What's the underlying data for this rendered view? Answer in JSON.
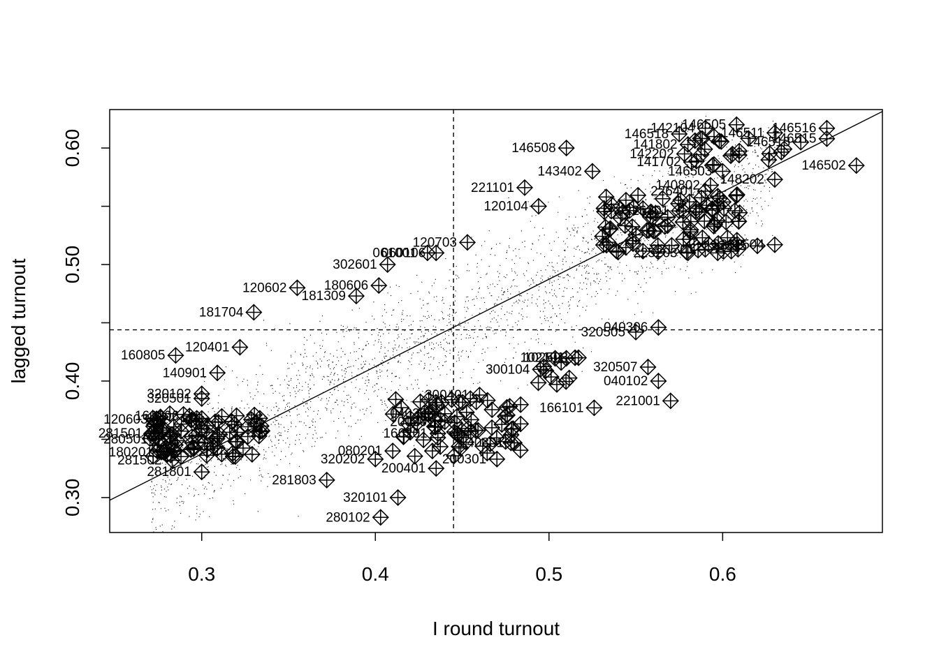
{
  "chart_data": {
    "type": "scatter",
    "xlabel": "I round turnout",
    "ylabel": "lagged turnout",
    "xlim": [
      0.247,
      0.692
    ],
    "ylim": [
      0.27,
      0.633
    ],
    "x_ticks": [
      0.3,
      0.4,
      0.5,
      0.6
    ],
    "x_tick_labels": [
      "0.3",
      "0.4",
      "0.5",
      "0.6"
    ],
    "y_ticks": [
      0.3,
      0.4,
      0.5,
      0.6
    ],
    "y_tick_labels": [
      "0.30",
      "0.40",
      "0.50",
      "0.60"
    ],
    "grid": false,
    "legend": "none",
    "reference_lines": {
      "vertical_x": 0.445,
      "horizontal_y": 0.444,
      "style": "dashed"
    },
    "fit_line": {
      "intercept": 0.1125,
      "slope": 0.7498
    },
    "background_points_note": "dense cloud of small dots following the fit line",
    "labeled_points": [
      {
        "label": "146516",
        "x": 0.66,
        "y": 0.617
      },
      {
        "label": "146505",
        "x": 0.608,
        "y": 0.62
      },
      {
        "label": "142104",
        "x": 0.59,
        "y": 0.617
      },
      {
        "label": "146511",
        "x": 0.63,
        "y": 0.613
      },
      {
        "label": "146515",
        "x": 0.66,
        "y": 0.608
      },
      {
        "label": "146513",
        "x": 0.645,
        "y": 0.605
      },
      {
        "label": "146518",
        "x": 0.575,
        "y": 0.612
      },
      {
        "label": "141802",
        "x": 0.58,
        "y": 0.603
      },
      {
        "label": "146502",
        "x": 0.677,
        "y": 0.585
      },
      {
        "label": "146508",
        "x": 0.51,
        "y": 0.6
      },
      {
        "label": "143402",
        "x": 0.525,
        "y": 0.58
      },
      {
        "label": "142202",
        "x": 0.578,
        "y": 0.595
      },
      {
        "label": "141702",
        "x": 0.582,
        "y": 0.588
      },
      {
        "label": "146503",
        "x": 0.6,
        "y": 0.58
      },
      {
        "label": "148202",
        "x": 0.63,
        "y": 0.573
      },
      {
        "label": "221101",
        "x": 0.486,
        "y": 0.566
      },
      {
        "label": "140802",
        "x": 0.593,
        "y": 0.568
      },
      {
        "label": "226401",
        "x": 0.59,
        "y": 0.563
      },
      {
        "label": "120104",
        "x": 0.494,
        "y": 0.55
      },
      {
        "label": "226201",
        "x": 0.575,
        "y": 0.546
      },
      {
        "label": "120703",
        "x": 0.453,
        "y": 0.519
      },
      {
        "label": "060106",
        "x": 0.435,
        "y": 0.51
      },
      {
        "label": "061001",
        "x": 0.43,
        "y": 0.51
      },
      {
        "label": "302601",
        "x": 0.407,
        "y": 0.5
      },
      {
        "label": "225203",
        "x": 0.58,
        "y": 0.51
      },
      {
        "label": "221301",
        "x": 0.59,
        "y": 0.513
      },
      {
        "label": "226015",
        "x": 0.62,
        "y": 0.516
      },
      {
        "label": "2201504",
        "x": 0.63,
        "y": 0.517
      },
      {
        "label": "120602",
        "x": 0.355,
        "y": 0.48
      },
      {
        "label": "180606",
        "x": 0.402,
        "y": 0.482
      },
      {
        "label": "181309",
        "x": 0.389,
        "y": 0.473
      },
      {
        "label": "181704",
        "x": 0.33,
        "y": 0.459
      },
      {
        "label": "040306",
        "x": 0.563,
        "y": 0.446
      },
      {
        "label": "320505",
        "x": 0.55,
        "y": 0.442
      },
      {
        "label": "120401",
        "x": 0.322,
        "y": 0.429
      },
      {
        "label": "160805",
        "x": 0.285,
        "y": 0.422
      },
      {
        "label": "102503",
        "x": 0.517,
        "y": 0.42
      },
      {
        "label": "102101",
        "x": 0.515,
        "y": 0.42
      },
      {
        "label": "320507",
        "x": 0.557,
        "y": 0.412
      },
      {
        "label": "140901",
        "x": 0.309,
        "y": 0.407
      },
      {
        "label": "300104",
        "x": 0.495,
        "y": 0.41
      },
      {
        "label": "040102",
        "x": 0.563,
        "y": 0.4
      },
      {
        "label": "320102",
        "x": 0.3,
        "y": 0.389
      },
      {
        "label": "320501",
        "x": 0.3,
        "y": 0.385
      },
      {
        "label": "221001",
        "x": 0.57,
        "y": 0.383
      },
      {
        "label": "300401",
        "x": 0.46,
        "y": 0.388
      },
      {
        "label": "166101",
        "x": 0.526,
        "y": 0.377
      },
      {
        "label": "160906",
        "x": 0.293,
        "y": 0.37
      },
      {
        "label": "040203",
        "x": 0.44,
        "y": 0.372
      },
      {
        "label": "200201",
        "x": 0.44,
        "y": 0.365
      },
      {
        "label": "120603",
        "x": 0.275,
        "y": 0.367
      },
      {
        "label": "281501",
        "x": 0.272,
        "y": 0.355
      },
      {
        "label": "280501",
        "x": 0.275,
        "y": 0.35
      },
      {
        "label": "166201",
        "x": 0.436,
        "y": 0.355
      },
      {
        "label": "140301",
        "x": 0.48,
        "y": 0.347
      },
      {
        "label": "080201",
        "x": 0.41,
        "y": 0.34
      },
      {
        "label": "180201",
        "x": 0.278,
        "y": 0.339
      },
      {
        "label": "320202",
        "x": 0.4,
        "y": 0.333
      },
      {
        "label": "281502",
        "x": 0.283,
        "y": 0.332
      },
      {
        "label": "200301",
        "x": 0.47,
        "y": 0.333
      },
      {
        "label": "200401",
        "x": 0.435,
        "y": 0.325
      },
      {
        "label": "281801",
        "x": 0.3,
        "y": 0.322
      },
      {
        "label": "281803",
        "x": 0.372,
        "y": 0.315
      },
      {
        "label": "320101",
        "x": 0.413,
        "y": 0.3
      },
      {
        "label": "280102",
        "x": 0.403,
        "y": 0.283
      }
    ],
    "unlabeled_markers_note": "dense overlapping cross-in-diamond markers clustered near (0.27-0.33, 0.33-0.37), (0.41-0.49, 0.33-0.38), (0.49-0.52, 0.39-0.42) and (0.53-0.61, 0.51-0.56)"
  }
}
